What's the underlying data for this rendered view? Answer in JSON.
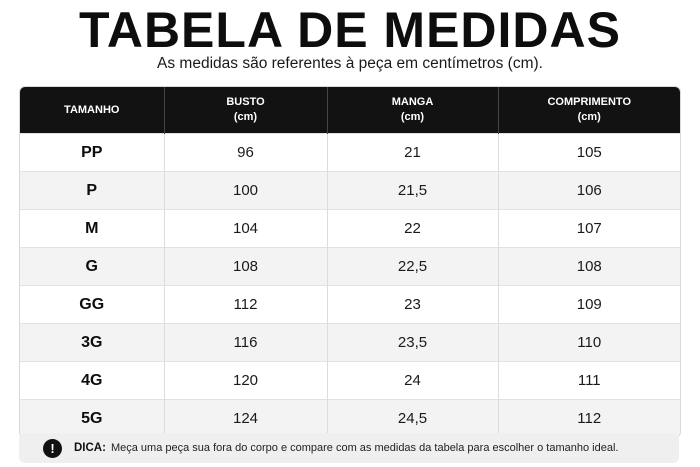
{
  "title": "TABELA DE MEDIDAS",
  "subtitle": "As medidas são referentes à peça em centímetros (cm).",
  "table": {
    "headers": [
      {
        "label": "TAMANHO",
        "unit": ""
      },
      {
        "label": "BUSTO",
        "unit": "(cm)"
      },
      {
        "label": "MANGA",
        "unit": "(cm)"
      },
      {
        "label": "COMPRIMENTO",
        "unit": "(cm)"
      }
    ],
    "rows": [
      {
        "size": "PP",
        "busto": "96",
        "manga": "21",
        "comprimento": "105"
      },
      {
        "size": "P",
        "busto": "100",
        "manga": "21,5",
        "comprimento": "106"
      },
      {
        "size": "M",
        "busto": "104",
        "manga": "22",
        "comprimento": "107"
      },
      {
        "size": "G",
        "busto": "108",
        "manga": "22,5",
        "comprimento": "108"
      },
      {
        "size": "GG",
        "busto": "112",
        "manga": "23",
        "comprimento": "109"
      },
      {
        "size": "3G",
        "busto": "116",
        "manga": "23,5",
        "comprimento": "110"
      },
      {
        "size": "4G",
        "busto": "120",
        "manga": "24",
        "comprimento": "111"
      },
      {
        "size": "5G",
        "busto": "124",
        "manga": "24,5",
        "comprimento": "112"
      }
    ]
  },
  "tip": {
    "icon": "exclamation-icon",
    "icon_glyph": "!",
    "label": "DICA:",
    "text": "Meça uma peça sua fora do corpo e compare com as medidas da tabela para escolher o tamanho ideal."
  },
  "colors": {
    "header_bg": "#121212",
    "header_text": "#ffffff",
    "stripe": "#f3f3f3",
    "tip_bg": "#efefef"
  }
}
